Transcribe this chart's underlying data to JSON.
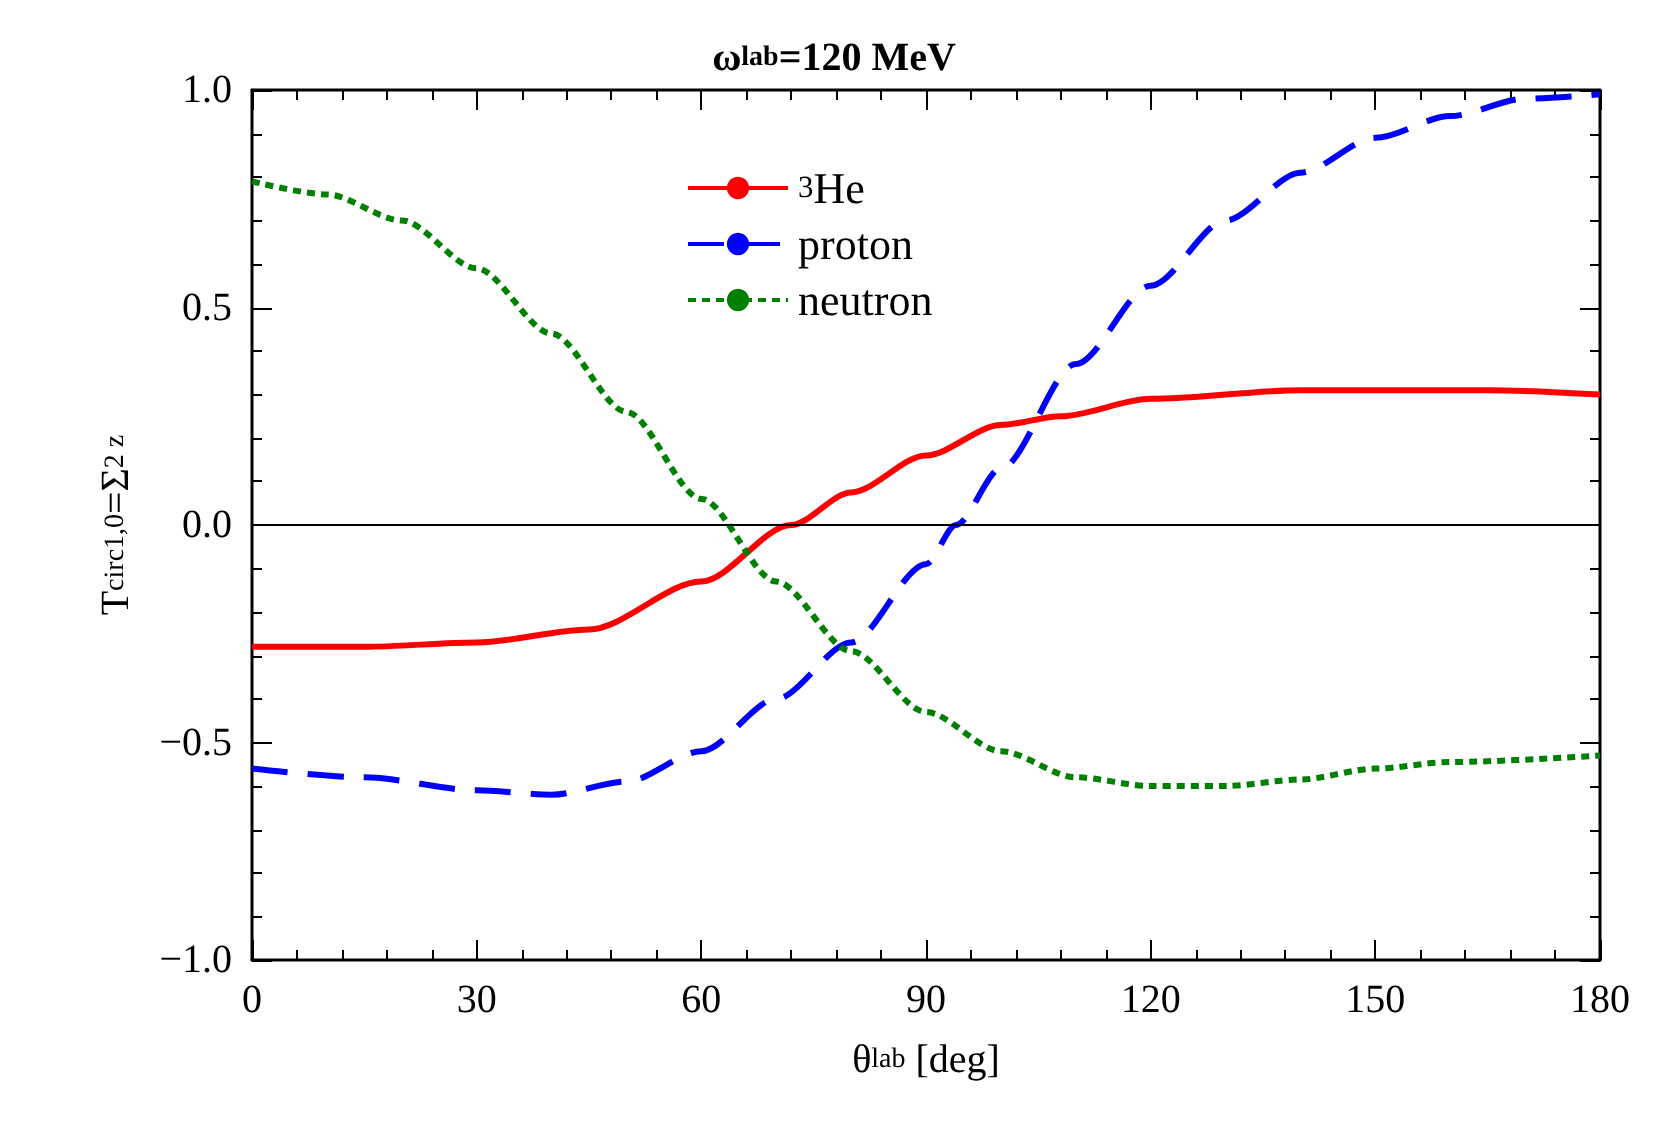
{
  "chart_data": {
    "type": "line",
    "title": "ω$_{lab}$=120 MeV",
    "xlabel": "θ$_{lab}$ [deg]",
    "ylabel": "T$^{circ}$$_{1,0}$=Σ$_{2 z}$",
    "xlim": [
      0,
      180
    ],
    "xticks": [
      0,
      30,
      60,
      90,
      120,
      150,
      180
    ],
    "ylim": [
      -1,
      1
    ],
    "yticks": [
      {
        "value": -1,
        "label": "−1.0"
      },
      {
        "value": -0.5,
        "label": "−0.5"
      },
      {
        "value": 0,
        "label": "0.0"
      },
      {
        "value": 0.5,
        "label": "0.5"
      },
      {
        "value": 1,
        "label": "1.0"
      }
    ],
    "grid": false,
    "legend": "top",
    "marker": "none",
    "ref_lines": [
      {
        "axis": "y",
        "value": 0,
        "color": "#000000"
      }
    ],
    "series": [
      {
        "name": "$^{3}$He",
        "color": "#ff0000",
        "line_style": "solid",
        "x": [
          0,
          15,
          30,
          45,
          60,
          72,
          80,
          90,
          100,
          108,
          120,
          140,
          150,
          165,
          180
        ],
        "values": [
          -0.28,
          -0.28,
          -0.27,
          -0.24,
          -0.13,
          0,
          0.075,
          0.16,
          0.23,
          0.25,
          0.29,
          0.31,
          0.31,
          0.31,
          0.3
        ]
      },
      {
        "name": "proton",
        "color": "#0000ff",
        "line_style": "dashed",
        "x": [
          0,
          15,
          30,
          40,
          50,
          60,
          70,
          80,
          90,
          94,
          100,
          110,
          120,
          130,
          140,
          150,
          160,
          170,
          180
        ],
        "values": [
          -0.56,
          -0.58,
          -0.61,
          -0.62,
          -0.59,
          -0.52,
          -0.4,
          -0.27,
          -0.09,
          0,
          0.13,
          0.37,
          0.55,
          0.7,
          0.81,
          0.89,
          0.94,
          0.98,
          0.99
        ]
      },
      {
        "name": "neutron",
        "color": "#008000",
        "line_style": "dotted",
        "x": [
          0,
          10,
          20,
          30,
          40,
          50,
          60,
          70,
          80,
          90,
          100,
          110,
          120,
          130,
          140,
          150,
          160,
          180
        ],
        "values": [
          0.79,
          0.76,
          0.7,
          0.59,
          0.44,
          0.26,
          0.06,
          -0.13,
          -0.29,
          -0.43,
          -0.52,
          -0.58,
          -0.6,
          -0.6,
          -0.585,
          -0.56,
          -0.545,
          -0.53
        ]
      }
    ]
  }
}
